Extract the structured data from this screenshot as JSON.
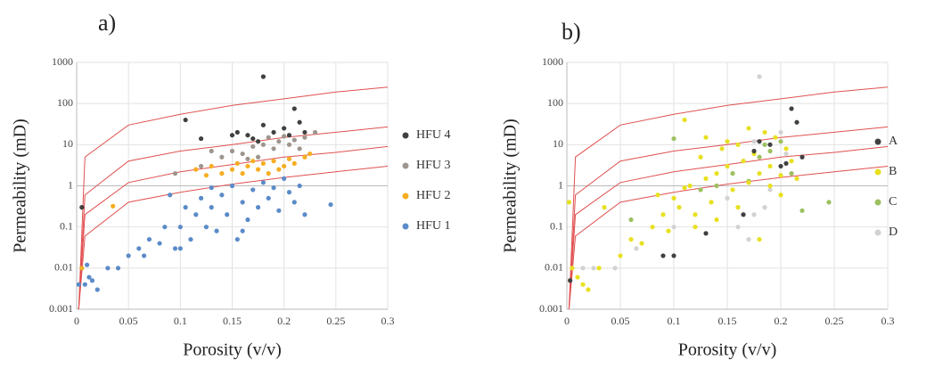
{
  "chart_data": [
    {
      "type": "scatter",
      "title": "a)",
      "xlabel": "Porosity (v/v)",
      "ylabel": "Permeability (mD)",
      "xlim": [
        0,
        0.3
      ],
      "ylim": [
        0.001,
        1000
      ],
      "log_y": true,
      "grid": true,
      "xticks": [
        0,
        0.05,
        0.1,
        0.15,
        0.2,
        0.25,
        0.3
      ],
      "yticks": [
        0.001,
        0.01,
        0.1,
        1,
        10,
        100,
        1000
      ],
      "lines": [
        {
          "color": "#e05050",
          "x": [
            0.002,
            0.008,
            0.05,
            0.1,
            0.15,
            0.2,
            0.25,
            0.3
          ],
          "values": [
            0.001,
            5,
            30,
            55,
            90,
            130,
            190,
            250
          ]
        },
        {
          "color": "#e05050",
          "x": [
            0.002,
            0.008,
            0.05,
            0.1,
            0.15,
            0.2,
            0.25,
            0.3
          ],
          "values": [
            0.001,
            0.6,
            4,
            7,
            10,
            15,
            20,
            27
          ]
        },
        {
          "color": "#e05050",
          "x": [
            0.002,
            0.008,
            0.05,
            0.1,
            0.15,
            0.2,
            0.25,
            0.3
          ],
          "values": [
            0.001,
            0.2,
            1.2,
            2.2,
            3.3,
            5,
            6.5,
            9
          ]
        },
        {
          "color": "#e05050",
          "x": [
            0.002,
            0.008,
            0.05,
            0.1,
            0.15,
            0.2,
            0.25,
            0.3
          ],
          "values": [
            0.001,
            0.06,
            0.4,
            0.7,
            1.1,
            1.6,
            2.2,
            3
          ]
        }
      ],
      "series": [
        {
          "name": "HFU 4",
          "color": "#404040",
          "x": [
            0.005,
            0.18,
            0.105,
            0.12,
            0.15,
            0.165,
            0.17,
            0.19,
            0.2,
            0.21,
            0.215,
            0.155,
            0.18,
            0.175,
            0.205,
            0.22
          ],
          "values": [
            0.3,
            450,
            40,
            14,
            17,
            17,
            14,
            20,
            25,
            75,
            35,
            20,
            30,
            12,
            17,
            20
          ]
        },
        {
          "name": "HFU 3",
          "color": "#9e968e",
          "x": [
            0.095,
            0.13,
            0.14,
            0.15,
            0.16,
            0.17,
            0.18,
            0.185,
            0.19,
            0.195,
            0.2,
            0.205,
            0.21,
            0.215,
            0.22,
            0.23,
            0.165,
            0.175,
            0.12
          ],
          "values": [
            2,
            7,
            5,
            7,
            6,
            9,
            10,
            15,
            8,
            12,
            16,
            10,
            13,
            8,
            15,
            20,
            4.5,
            5,
            3
          ]
        },
        {
          "name": "HFU 2",
          "color": "#f5ae22",
          "x": [
            0.005,
            0.035,
            0.115,
            0.125,
            0.13,
            0.14,
            0.15,
            0.155,
            0.16,
            0.165,
            0.17,
            0.175,
            0.18,
            0.185,
            0.19,
            0.195,
            0.2,
            0.205,
            0.21,
            0.22,
            0.225
          ],
          "values": [
            0.01,
            0.32,
            2.5,
            1.8,
            3,
            2,
            2.5,
            3.5,
            2,
            3,
            4,
            2.5,
            3.5,
            2,
            4,
            2.5,
            3,
            4.5,
            3.5,
            5,
            6
          ]
        },
        {
          "name": "HFU 1",
          "color": "#5b8bc8",
          "x": [
            0.002,
            0.005,
            0.008,
            0.01,
            0.012,
            0.015,
            0.02,
            0.03,
            0.04,
            0.05,
            0.06,
            0.065,
            0.07,
            0.08,
            0.085,
            0.09,
            0.095,
            0.1,
            0.105,
            0.11,
            0.115,
            0.12,
            0.125,
            0.13,
            0.135,
            0.14,
            0.145,
            0.15,
            0.155,
            0.16,
            0.165,
            0.17,
            0.175,
            0.18,
            0.185,
            0.19,
            0.195,
            0.2,
            0.205,
            0.21,
            0.215,
            0.22,
            0.245,
            0.1,
            0.13,
            0.16
          ],
          "values": [
            0.004,
            0.01,
            0.004,
            0.012,
            0.006,
            0.005,
            0.003,
            0.01,
            0.01,
            0.02,
            0.03,
            0.02,
            0.05,
            0.04,
            0.1,
            0.6,
            0.03,
            0.1,
            0.3,
            0.05,
            0.2,
            0.5,
            0.1,
            0.3,
            0.08,
            0.6,
            0.2,
            1,
            0.05,
            0.4,
            0.15,
            0.8,
            0.3,
            1.2,
            0.5,
            0.9,
            0.25,
            1.5,
            0.7,
            0.4,
            1,
            0.2,
            0.35,
            0.03,
            0.9,
            0.08
          ]
        }
      ]
    },
    {
      "type": "scatter",
      "title": "b)",
      "xlabel": "Porosity (v/v)",
      "ylabel": "Permeability (mD)",
      "xlim": [
        0,
        0.3
      ],
      "ylim": [
        0.001,
        1000
      ],
      "log_y": true,
      "grid": true,
      "xticks": [
        0,
        0.05,
        0.1,
        0.15,
        0.2,
        0.25,
        0.3
      ],
      "yticks": [
        0.001,
        0.01,
        0.1,
        1,
        10,
        100,
        1000
      ],
      "lines": [
        {
          "color": "#e05050",
          "x": [
            0.002,
            0.008,
            0.05,
            0.1,
            0.15,
            0.2,
            0.25,
            0.3
          ],
          "values": [
            0.001,
            5,
            30,
            55,
            90,
            130,
            190,
            250
          ]
        },
        {
          "color": "#e05050",
          "x": [
            0.002,
            0.008,
            0.05,
            0.1,
            0.15,
            0.2,
            0.25,
            0.3
          ],
          "values": [
            0.001,
            0.6,
            4,
            7,
            10,
            15,
            20,
            27
          ]
        },
        {
          "color": "#e05050",
          "x": [
            0.002,
            0.008,
            0.05,
            0.1,
            0.15,
            0.2,
            0.25,
            0.3
          ],
          "values": [
            0.001,
            0.2,
            1.2,
            2.2,
            3.3,
            5,
            6.5,
            9
          ]
        },
        {
          "color": "#e05050",
          "x": [
            0.002,
            0.008,
            0.05,
            0.1,
            0.15,
            0.2,
            0.25,
            0.3
          ],
          "values": [
            0.001,
            0.06,
            0.4,
            0.7,
            1.1,
            1.6,
            2.2,
            3
          ]
        }
      ],
      "series": [
        {
          "name": "A",
          "color": "#404040",
          "x": [
            0.003,
            0.09,
            0.1,
            0.13,
            0.165,
            0.18,
            0.19,
            0.2,
            0.205,
            0.21,
            0.215,
            0.22,
            0.175
          ],
          "values": [
            0.005,
            0.02,
            0.02,
            0.07,
            0.2,
            12,
            10,
            3,
            3.5,
            75,
            35,
            5,
            7
          ]
        },
        {
          "name": "B",
          "color": "#e8e020",
          "x": [
            0.002,
            0.005,
            0.01,
            0.015,
            0.02,
            0.03,
            0.05,
            0.06,
            0.07,
            0.08,
            0.085,
            0.09,
            0.095,
            0.1,
            0.105,
            0.11,
            0.115,
            0.12,
            0.125,
            0.13,
            0.135,
            0.14,
            0.145,
            0.15,
            0.155,
            0.16,
            0.165,
            0.17,
            0.175,
            0.18,
            0.185,
            0.19,
            0.195,
            0.2,
            0.205,
            0.21,
            0.215,
            0.12,
            0.14,
            0.16,
            0.18,
            0.2,
            0.15,
            0.17,
            0.13,
            0.19,
            0.11,
            0.035
          ],
          "values": [
            0.4,
            0.01,
            0.006,
            0.004,
            0.003,
            0.01,
            0.02,
            0.05,
            0.04,
            0.1,
            0.6,
            0.2,
            0.08,
            0.5,
            0.3,
            40,
            1,
            0.2,
            5,
            1.5,
            0.4,
            2,
            8,
            3,
            0.8,
            10,
            4,
            1.2,
            6,
            2,
            20,
            3,
            15,
            1.8,
            8,
            4,
            1.5,
            0.1,
            0.15,
            0.3,
            0.05,
            0.6,
            12,
            25,
            15,
            1,
            0.9,
            0.3
          ]
        },
        {
          "name": "C",
          "color": "#9cc060",
          "x": [
            0.06,
            0.1,
            0.125,
            0.14,
            0.155,
            0.165,
            0.17,
            0.18,
            0.185,
            0.19,
            0.2,
            0.21,
            0.22,
            0.245
          ],
          "values": [
            0.15,
            14,
            0.8,
            1,
            2,
            4,
            1.3,
            5,
            10,
            7,
            12,
            2,
            0.25,
            0.4
          ]
        },
        {
          "name": "D",
          "color": "#d2d2d2",
          "x": [
            0.005,
            0.015,
            0.025,
            0.045,
            0.065,
            0.1,
            0.13,
            0.15,
            0.16,
            0.17,
            0.175,
            0.18,
            0.185,
            0.19,
            0.2,
            0.205,
            0.175
          ],
          "values": [
            0.01,
            0.01,
            0.01,
            0.01,
            0.03,
            0.1,
            0.07,
            0.5,
            0.1,
            0.05,
            0.2,
            450,
            0.3,
            0.8,
            20,
            6,
            12
          ]
        }
      ]
    }
  ]
}
